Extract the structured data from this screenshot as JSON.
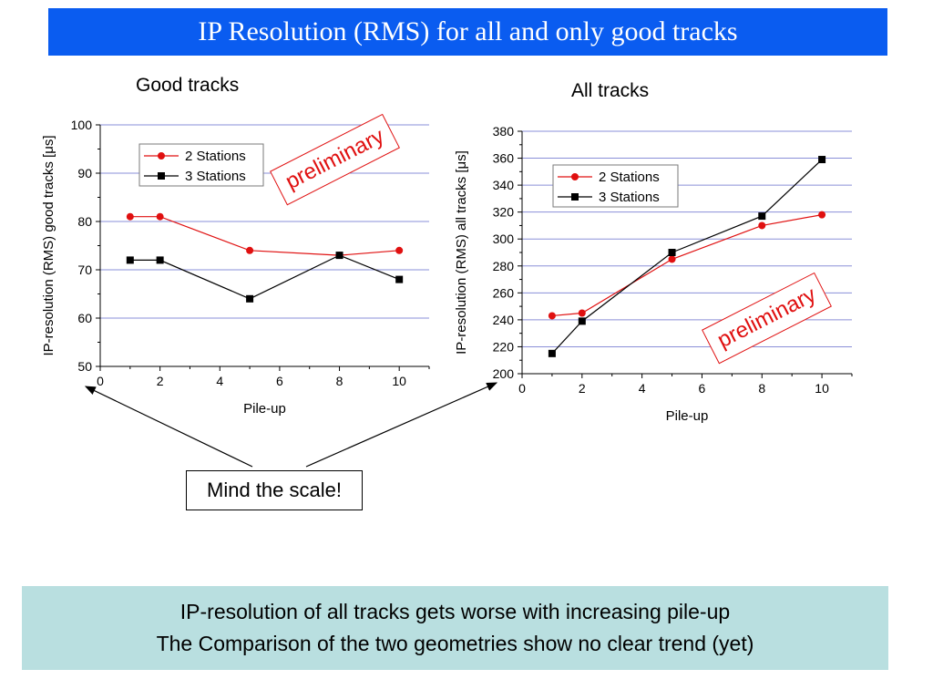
{
  "slide": {
    "title": "IP Resolution (RMS) for all and only good tracks",
    "callout": "Mind the scale!",
    "summary": [
      "IP-resolution of all tracks gets worse with increasing pile-up",
      "The Comparison of the two geometries show no clear trend (yet)"
    ]
  },
  "colors": {
    "banner": "#0a5cf0",
    "summary_bg": "#b9dfe0",
    "series_2": "#e01010",
    "series_3": "#000000",
    "grid": "#8a8fd8"
  },
  "chart_data": [
    {
      "type": "line",
      "title": "Good tracks",
      "stamp": "preliminary",
      "xlabel": "Pile-up",
      "ylabel": "IP-resolution (RMS) good tracks [μs]",
      "xlim": [
        0,
        11
      ],
      "ylim": [
        50,
        100
      ],
      "xticks": [
        0,
        2,
        4,
        6,
        8,
        10
      ],
      "yticks": [
        50,
        60,
        70,
        80,
        90,
        100
      ],
      "grid": "horizontal",
      "legend_position": "top-left",
      "series": [
        {
          "name": "2 Stations",
          "marker": "circle",
          "x": [
            1,
            2,
            5,
            8,
            10
          ],
          "y": [
            81,
            81,
            74,
            73,
            74
          ]
        },
        {
          "name": "3 Stations",
          "marker": "square",
          "x": [
            1,
            2,
            5,
            8,
            10
          ],
          "y": [
            72,
            72,
            64,
            73,
            68
          ]
        }
      ]
    },
    {
      "type": "line",
      "title": "All tracks",
      "stamp": "preliminary",
      "xlabel": "Pile-up",
      "ylabel": "IP-resolution (RMS) all tracks [μs]",
      "xlim": [
        0,
        11
      ],
      "ylim": [
        200,
        380
      ],
      "xticks": [
        0,
        2,
        4,
        6,
        8,
        10
      ],
      "yticks": [
        200,
        220,
        240,
        260,
        280,
        300,
        320,
        340,
        360,
        380
      ],
      "grid": "horizontal",
      "legend_position": "top-left",
      "series": [
        {
          "name": "2 Stations",
          "marker": "circle",
          "x": [
            1,
            2,
            5,
            8,
            10
          ],
          "y": [
            243,
            245,
            285,
            310,
            318
          ]
        },
        {
          "name": "3 Stations",
          "marker": "square",
          "x": [
            1,
            2,
            5,
            8,
            10
          ],
          "y": [
            215,
            239,
            290,
            317,
            359
          ]
        }
      ]
    }
  ]
}
